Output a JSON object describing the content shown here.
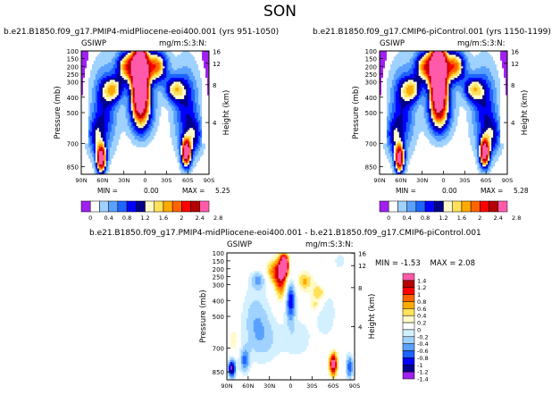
{
  "page_title": "SON",
  "colors": {
    "purple": "#a020f0",
    "navy": "#00008b",
    "blue": "#0000ff",
    "mid_blue": "#1e64ff",
    "light_blue": "#5aa0ff",
    "pale_blue": "#a0d2ff",
    "very_pale_blue": "#d2f0ff",
    "white": "#ffffff",
    "pale_yellow": "#fffac8",
    "yellow": "#ffe15a",
    "orange": "#ffaa00",
    "dark_orange": "#ff6400",
    "red": "#ff0000",
    "dark_red": "#b40000",
    "pink": "#ff5aaa"
  },
  "chart_data": [
    {
      "type": "heatmap",
      "title": "b.e21.B1850.f09_g17.PMIP4-midPliocene-eoi400.001 (yrs 951-1050)",
      "left_label": "GSIWP",
      "units_label": "mg/m:S:3:N:",
      "ylabel": "Pressure (mb)",
      "ylabel_right": "Height (km)",
      "x_ticks": [
        "90N",
        "60N",
        "30N",
        "0",
        "30S",
        "60S",
        "90S"
      ],
      "y_ticks": [
        "100",
        "150",
        "200",
        "250",
        "300",
        "400",
        "500",
        "700",
        "850"
      ],
      "y_right_ticks": [
        "16",
        "12",
        "8",
        "4"
      ],
      "ylim_mb": [
        100,
        900
      ],
      "xlim_lat": [
        90,
        -90
      ],
      "stats": {
        "min_label": "MIN =",
        "min": "0.00",
        "max_label": "MAX =",
        "max": "5.25"
      },
      "colorbar_levels": [
        "0",
        "0.4",
        "0.8",
        "1.2",
        "1.6",
        "2",
        "2.4",
        "2.8"
      ],
      "features": [
        {
          "lat": 7,
          "p": 260,
          "value": 5.25
        },
        {
          "lat": 62,
          "p": 800,
          "value": 3.0
        },
        {
          "lat": -58,
          "p": 760,
          "value": 2.9
        }
      ]
    },
    {
      "type": "heatmap",
      "title": "b.e21.B1850.f09_g17.CMIP6-piControl.001 (yrs 1150-1199)",
      "left_label": "GSIWP",
      "units_label": "mg/m:S:3:N:",
      "ylabel": "Pressure (mb)",
      "ylabel_right": "Height (km)",
      "x_ticks": [
        "90N",
        "60N",
        "30N",
        "0",
        "30S",
        "60S",
        "90S"
      ],
      "y_ticks": [
        "100",
        "150",
        "200",
        "250",
        "300",
        "400",
        "500",
        "700",
        "850"
      ],
      "y_right_ticks": [
        "16",
        "12",
        "8",
        "4"
      ],
      "ylim_mb": [
        100,
        900
      ],
      "xlim_lat": [
        90,
        -90
      ],
      "stats": {
        "min_label": "MIN =",
        "min": "0.00",
        "max_label": "MAX =",
        "max": "5.28"
      },
      "colorbar_levels": [
        "0",
        "0.4",
        "0.8",
        "1.2",
        "1.6",
        "2",
        "2.4",
        "2.8"
      ],
      "features": [
        {
          "lat": 7,
          "p": 250,
          "value": 5.28
        },
        {
          "lat": 62,
          "p": 800,
          "value": 2.8
        },
        {
          "lat": -58,
          "p": 760,
          "value": 3.0
        }
      ]
    },
    {
      "type": "heatmap",
      "title": "b.e21.B1850.f09_g17.PMIP4-midPliocene-eoi400.001 - b.e21.B1850.f09_g17.CMIP6-piControl.001",
      "left_label": "GSIWP",
      "units_label": "mg/m:S:3:N:",
      "ylabel": "Pressure (mb)",
      "ylabel_right": "Height (km)",
      "x_ticks": [
        "90N",
        "60N",
        "30N",
        "0",
        "30S",
        "60S",
        "90S"
      ],
      "y_ticks": [
        "100",
        "150",
        "200",
        "250",
        "300",
        "400",
        "500",
        "700",
        "850"
      ],
      "y_right_ticks": [
        "16",
        "12",
        "8",
        "4"
      ],
      "ylim_mb": [
        100,
        900
      ],
      "xlim_lat": [
        90,
        -90
      ],
      "stats": {
        "min_label": "MIN =",
        "min": "-1.53",
        "max_label": "MAX =",
        "max": "2.08"
      },
      "colorbar_levels": [
        "1.4",
        "1.2",
        "1",
        "0.8",
        "0.6",
        "0.4",
        "0.2",
        "0",
        "-0.2",
        "-0.4",
        "-0.6",
        "-0.8",
        "-1",
        "-1.2",
        "-1.4"
      ],
      "features": [
        {
          "lat": 9,
          "p": 180,
          "value": 2.08
        },
        {
          "lat": 83,
          "p": 830,
          "value": -1.53
        },
        {
          "lat": -60,
          "p": 800,
          "value": 1.6
        }
      ]
    }
  ]
}
